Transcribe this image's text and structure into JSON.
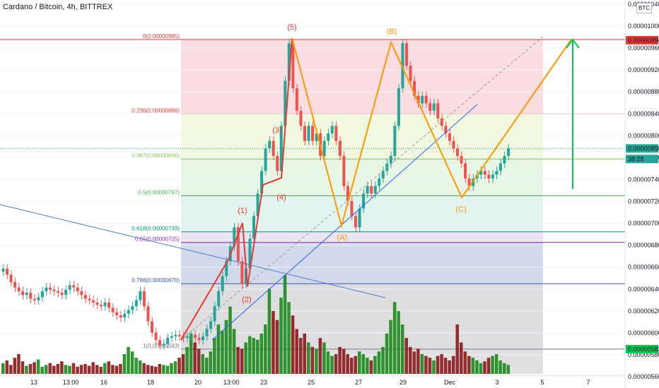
{
  "header": {
    "title": "Cardano / Bitcoin, 4h, BITTREX",
    "currency_badge": "BTC"
  },
  "colors": {
    "up": "#26a69a",
    "down": "#ef5350",
    "wave_red": "#e53935",
    "wave_orange": "#ff9800",
    "trend_blue": "#2962ff",
    "target_green": "#00c853",
    "price_line": "#26a69a"
  },
  "price_axis": {
    "ylim": [
      5.5e-06,
      1.04e-05
    ],
    "ticks": [
      "0.00001040",
      "0.00001000",
      "0.00000960",
      "0.00000920",
      "0.00000880",
      "0.00000840",
      "0.00000800",
      "0.00000760",
      "0.00000740",
      "0.00000720",
      "0.00000700",
      "0.00000680",
      "0.00000660",
      "0.00000640",
      "0.00000620",
      "0.00000600",
      "0.00000580",
      "0.00000560"
    ],
    "badges": [
      {
        "label": "0.00000994",
        "value": 9.94e-06,
        "color": "#e53935"
      },
      {
        "label": "0.00000850",
        "value": 8.5e-06,
        "color": "#26a69a"
      },
      {
        "label": "38:28",
        "value": 8.36e-06,
        "color": "#26a69a"
      },
      {
        "label": "0.00000583",
        "value": 5.83e-06,
        "color": "#00c853"
      }
    ]
  },
  "time_axis": {
    "labels": [
      "13",
      "13:00",
      "16",
      "18",
      "20",
      "13:00",
      "23",
      "25",
      "27",
      "29",
      "Dec",
      "3",
      "5",
      "7"
    ]
  },
  "fib_levels": [
    {
      "label": "0(0.00000995)",
      "value": 9.95e-06,
      "color": "#e53935"
    },
    {
      "label": "0.236(0.00000896)",
      "value": 8.96e-06,
      "color": "#e53935"
    },
    {
      "label": "0.382(0.00000836)",
      "value": 8.36e-06,
      "color": "#8bc34a"
    },
    {
      "label": "0.5(0.00000787)",
      "value": 7.87e-06,
      "color": "#4caf50"
    },
    {
      "label": "0.618(0.00000739)",
      "value": 7.39e-06,
      "color": "#009688"
    },
    {
      "label": "0.65(0.00000725)",
      "value": 7.25e-06,
      "color": "#9c27b0"
    },
    {
      "label": "0.786(0.00000670)",
      "value": 6.7e-06,
      "color": "#3f51b5"
    },
    {
      "label": "1(0.00000583)",
      "value": 5.83e-06,
      "color": "#787b86"
    }
  ],
  "waves": {
    "impulse_labels": [
      "(1)",
      "(2)",
      "(3)",
      "(4)",
      "(5)"
    ],
    "correction_labels": [
      "(A)",
      "(B)",
      "(C)"
    ]
  },
  "chart_data": {
    "type": "candlestick",
    "title": "Cardano / Bitcoin, 4h, BITTREX",
    "closes": [
      6.9e-06,
      6.82e-06,
      6.72e-06,
      6.65e-06,
      6.6e-06,
      6.55e-06,
      6.58e-06,
      6.5e-06,
      6.48e-06,
      6.52e-06,
      6.6e-06,
      6.65e-06,
      6.62e-06,
      6.6e-06,
      6.58e-06,
      6.55e-06,
      6.62e-06,
      6.68e-06,
      6.65e-06,
      6.6e-06,
      6.55e-06,
      6.5e-06,
      6.48e-06,
      6.45e-06,
      6.42e-06,
      6.4e-06,
      6.45e-06,
      6.38e-06,
      6.32e-06,
      6.28e-06,
      6.25e-06,
      6.3e-06,
      6.35e-06,
      6.4e-06,
      6.48e-06,
      6.6e-06,
      6.4e-06,
      6.2e-06,
      6.05e-06,
      5.95e-06,
      5.88e-06,
      5.9e-06,
      5.98e-06,
      6e-06,
      6.02e-06,
      6e-06,
      5.98e-06,
      6e-06,
      6.02e-06,
      5.98e-06,
      5.95e-06,
      6e-06,
      6.1e-06,
      6.2e-06,
      6.4e-06,
      6.6e-06,
      6.8e-06,
      7e-06,
      7.2e-06,
      7.45e-06,
      7e-06,
      6.7e-06,
      6.9e-06,
      7.3e-06,
      7.6e-06,
      7.9e-06,
      8.2e-06,
      8.5e-06,
      8.6e-06,
      8.4e-06,
      8.2e-06,
      8.8e-06,
      9.4e-06,
      9.9e-06,
      9.3e-06,
      9e-06,
      8.8e-06,
      8.6e-06,
      8.8e-06,
      8.6e-06,
      8.7e-06,
      8.4e-06,
      8.6e-06,
      8.7e-06,
      8.8e-06,
      8.6e-06,
      8.4e-06,
      8e-06,
      7.8e-06,
      7.6e-06,
      7.45e-06,
      7.7e-06,
      7.9e-06,
      8e-06,
      7.9e-06,
      8e-06,
      8.1e-06,
      8.2e-06,
      8.3e-06,
      8.4e-06,
      8.8e-06,
      9.3e-06,
      9.9e-06,
      9.6e-06,
      9.4e-06,
      9.2e-06,
      9.1e-06,
      9.2e-06,
      9.1e-06,
      9e-06,
      9.1e-06,
      8.9e-06,
      8.8e-06,
      8.7e-06,
      8.6e-06,
      8.5e-06,
      8.4e-06,
      8.3e-06,
      8.1e-06,
      8e-06,
      8.1e-06,
      8.15e-06,
      8.2e-06,
      8.15e-06,
      8.1e-06,
      8.15e-06,
      8.2e-06,
      8.3e-06,
      8.4e-06,
      8.5e-06
    ],
    "volumes": [
      12,
      15,
      10,
      18,
      22,
      14,
      9,
      11,
      13,
      16,
      8,
      10,
      12,
      9,
      11,
      14,
      10,
      9,
      12,
      8,
      10,
      11,
      9,
      13,
      10,
      8,
      12,
      14,
      10,
      9,
      11,
      22,
      30,
      25,
      18,
      15,
      12,
      10,
      9,
      8,
      11,
      10,
      9,
      12,
      14,
      18,
      22,
      30,
      45,
      35,
      28,
      22,
      18,
      25,
      40,
      55,
      48,
      60,
      75,
      50,
      30,
      28,
      35,
      42,
      40,
      38,
      45,
      55,
      95,
      70,
      60,
      85,
      110,
      80,
      65,
      50,
      40,
      45,
      35,
      30,
      28,
      40,
      35,
      25,
      20,
      22,
      30,
      28,
      22,
      18,
      20,
      25,
      22,
      18,
      15,
      20,
      25,
      30,
      45,
      60,
      80,
      70,
      55,
      40,
      30,
      25,
      28,
      22,
      20,
      18,
      15,
      20,
      22,
      18,
      15,
      20,
      55,
      35,
      25,
      20,
      18,
      15,
      12,
      14,
      18,
      20,
      22,
      15,
      12,
      10
    ],
    "ylim": [
      5.5e-06,
      1.04e-05
    ]
  }
}
